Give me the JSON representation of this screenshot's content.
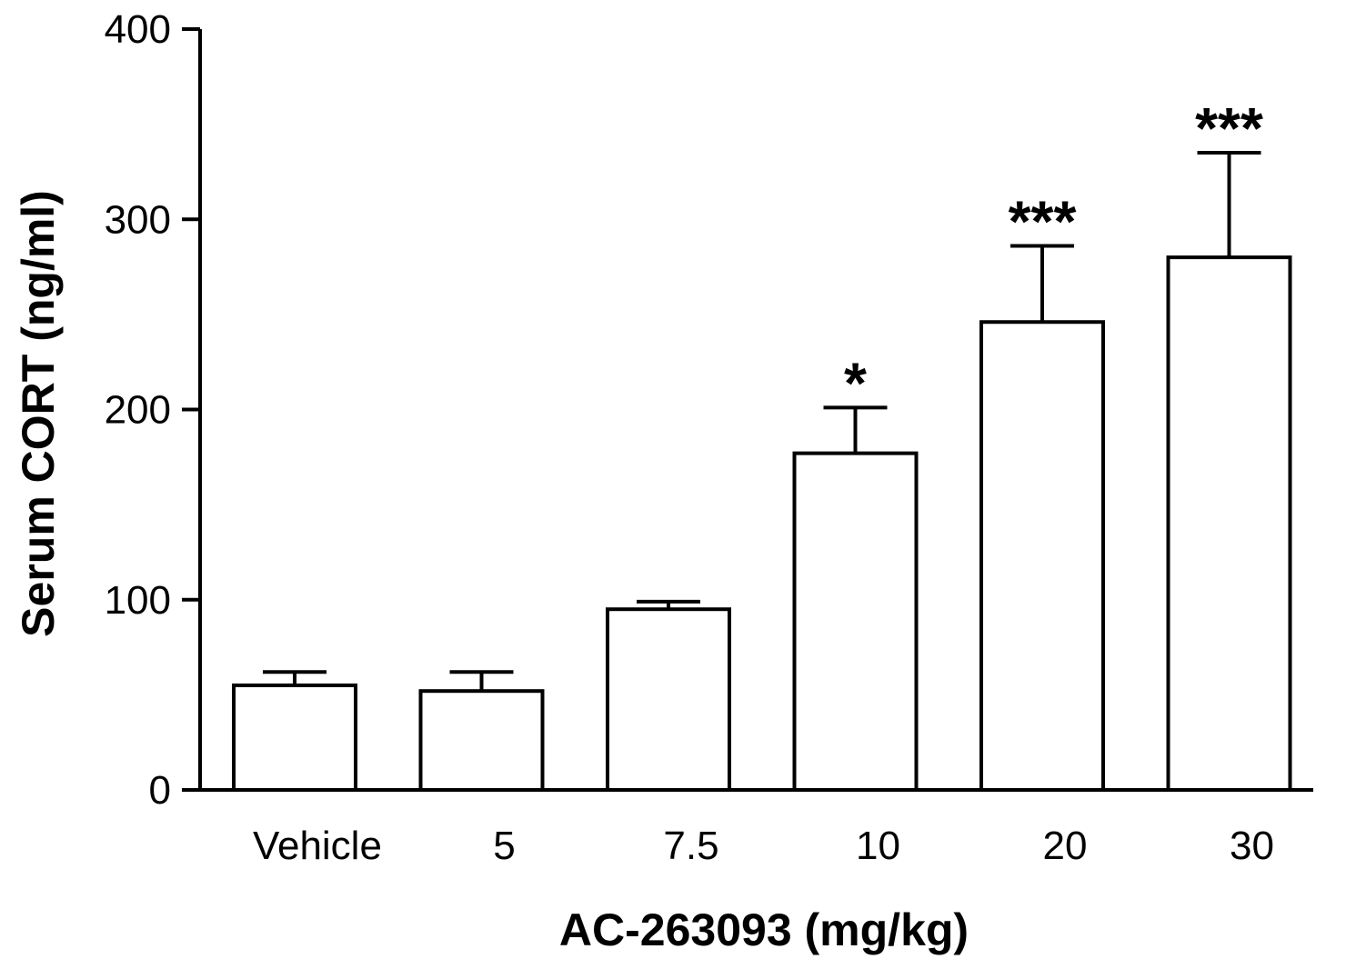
{
  "chart_data": {
    "type": "bar",
    "title": "",
    "xlabel": "AC-263093 (mg/kg)",
    "ylabel": "Serum CORT (ng/ml)",
    "ylim": [
      0,
      400
    ],
    "yticks": [
      "0",
      "100",
      "200",
      "300",
      "400"
    ],
    "ytick_values": [
      0,
      100,
      200,
      300,
      400
    ],
    "categories": [
      "Vehicle",
      "5",
      "7.5",
      "10",
      "20",
      "30"
    ],
    "values": [
      55,
      52,
      95,
      177,
      246,
      280
    ],
    "error_upper": [
      62,
      62,
      99,
      201,
      286,
      335
    ],
    "significance": [
      "",
      "",
      "",
      "*",
      "***",
      "***"
    ],
    "grid": false,
    "legend": "none",
    "colors": {
      "bar_fill": "#ffffff",
      "bar_stroke": "#000000",
      "axis": "#000000",
      "text": "#000000"
    }
  }
}
